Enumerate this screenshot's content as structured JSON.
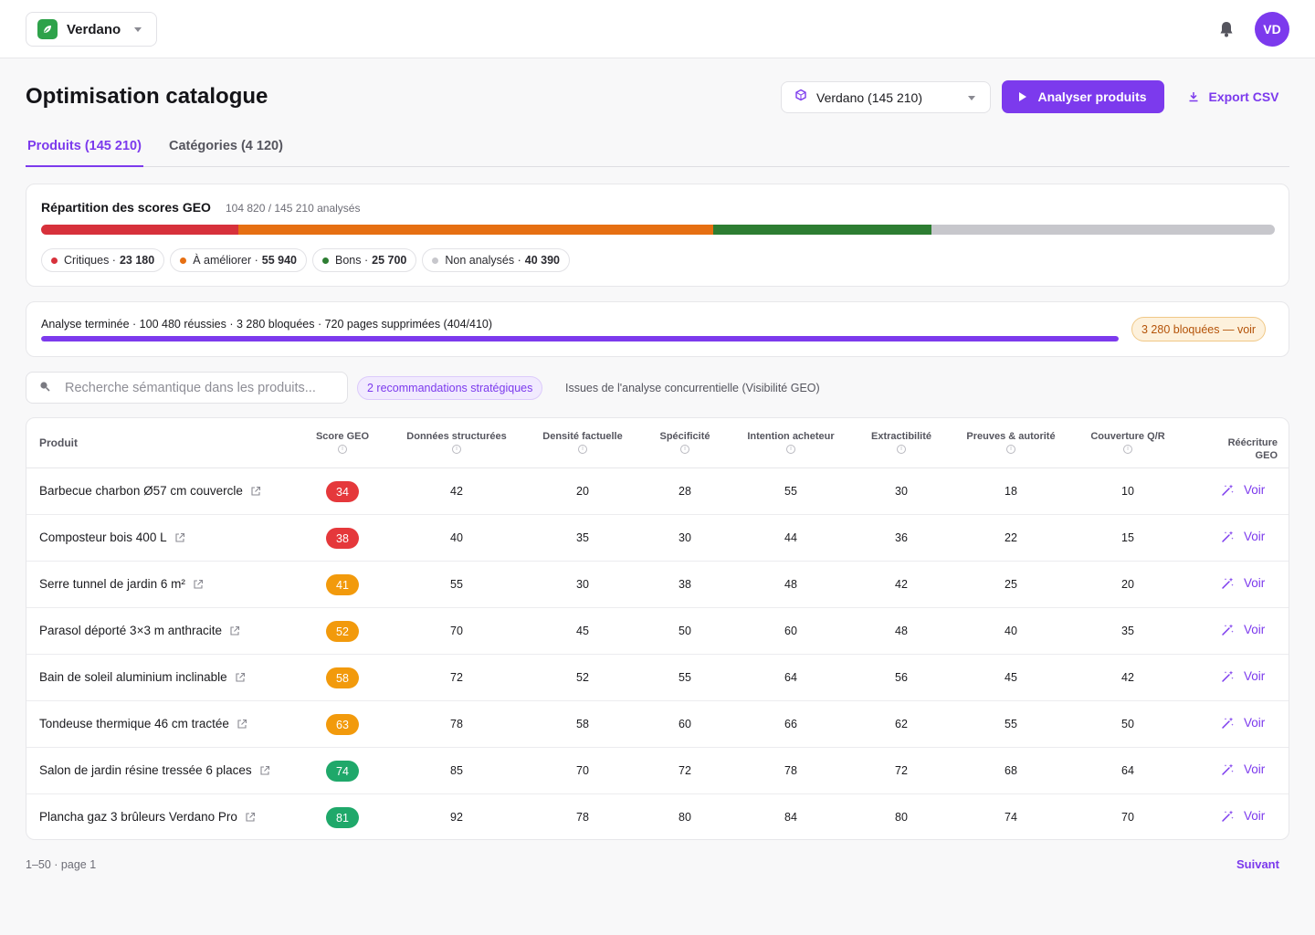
{
  "brand": {
    "name": "Verdano",
    "icon": "leaf-icon",
    "color": "#2ea24a"
  },
  "user": {
    "initials": "VD"
  },
  "header": {
    "title": "Optimisation catalogue",
    "store_selector": "Verdano (145 210)",
    "analyze_label": "Analyser produits",
    "export_label": "Export CSV"
  },
  "tabs": [
    {
      "label": "Produits (145 210)",
      "active": true
    },
    {
      "label": "Catégories (4 120)",
      "active": false
    }
  ],
  "distribution": {
    "title": "Répartition des scores GEO",
    "subtitle": "104 820 / 145 210 analysés",
    "segments": [
      {
        "label": "Critiques",
        "count": "23 180",
        "value": 23180,
        "color": "#d7313b"
      },
      {
        "label": "À améliorer",
        "count": "55 940",
        "value": 55940,
        "color": "#e66f12"
      },
      {
        "label": "Bons",
        "count": "25 700",
        "value": 25700,
        "color": "#2d7d32"
      },
      {
        "label": "Non analysés",
        "count": "40 390",
        "value": 40390,
        "color": "#c7c7cc"
      }
    ]
  },
  "analysis": {
    "status": "Analyse terminée · 100 480 réussies · 3 280 bloquées · 720 pages supprimées (404/410)",
    "progress": 1.0,
    "blocked_badge": "3 280 bloquées — voir"
  },
  "search": {
    "placeholder": "Recherche sémantique dans les produits..."
  },
  "recommendations": {
    "badge": "2 recommandations stratégiques",
    "text": "Issues de l'analyse concurrentielle (Visibilité GEO)"
  },
  "table": {
    "headers": {
      "product": "Produit",
      "score": "Score GEO",
      "structured": "Données structurées",
      "factual": "Densité factuelle",
      "specificity": "Spécificité",
      "intent": "Intention acheteur",
      "extract": "Extractibilité",
      "proof": "Preuves & autorité",
      "qa": "Couverture Q/R",
      "rewrite": "Réécriture GEO"
    },
    "action_label": "Voir",
    "rows": [
      {
        "name": "Barbecue charbon Ø57 cm couvercle",
        "score": "34",
        "score_color": "#e5383b",
        "structured": "42",
        "factual": "20",
        "specificity": "28",
        "intent": "55",
        "extract": "30",
        "proof": "18",
        "qa": "10"
      },
      {
        "name": "Composteur bois 400 L",
        "score": "38",
        "score_color": "#e5383b",
        "structured": "40",
        "factual": "35",
        "specificity": "30",
        "intent": "44",
        "extract": "36",
        "proof": "22",
        "qa": "15"
      },
      {
        "name": "Serre tunnel de jardin 6 m²",
        "score": "41",
        "score_color": "#f29a0c",
        "structured": "55",
        "factual": "30",
        "specificity": "38",
        "intent": "48",
        "extract": "42",
        "proof": "25",
        "qa": "20"
      },
      {
        "name": "Parasol déporté 3×3 m anthracite",
        "score": "52",
        "score_color": "#f29a0c",
        "structured": "70",
        "factual": "45",
        "specificity": "50",
        "intent": "60",
        "extract": "48",
        "proof": "40",
        "qa": "35"
      },
      {
        "name": "Bain de soleil aluminium inclinable",
        "score": "58",
        "score_color": "#f29a0c",
        "structured": "72",
        "factual": "52",
        "specificity": "55",
        "intent": "64",
        "extract": "56",
        "proof": "45",
        "qa": "42"
      },
      {
        "name": "Tondeuse thermique 46 cm tractée",
        "score": "63",
        "score_color": "#f29a0c",
        "structured": "78",
        "factual": "58",
        "specificity": "60",
        "intent": "66",
        "extract": "62",
        "proof": "55",
        "qa": "50"
      },
      {
        "name": "Salon de jardin résine tressée 6 places",
        "score": "74",
        "score_color": "#1fa86a",
        "structured": "85",
        "factual": "70",
        "specificity": "72",
        "intent": "78",
        "extract": "72",
        "proof": "68",
        "qa": "64"
      },
      {
        "name": "Plancha gaz 3 brûleurs Verdano Pro",
        "score": "81",
        "score_color": "#1fa86a",
        "structured": "92",
        "factual": "78",
        "specificity": "80",
        "intent": "84",
        "extract": "80",
        "proof": "74",
        "qa": "70"
      }
    ]
  },
  "pagination": {
    "text": "1–50 · page 1",
    "next_label": "Suivant"
  },
  "accent_color": "#7c3aed"
}
